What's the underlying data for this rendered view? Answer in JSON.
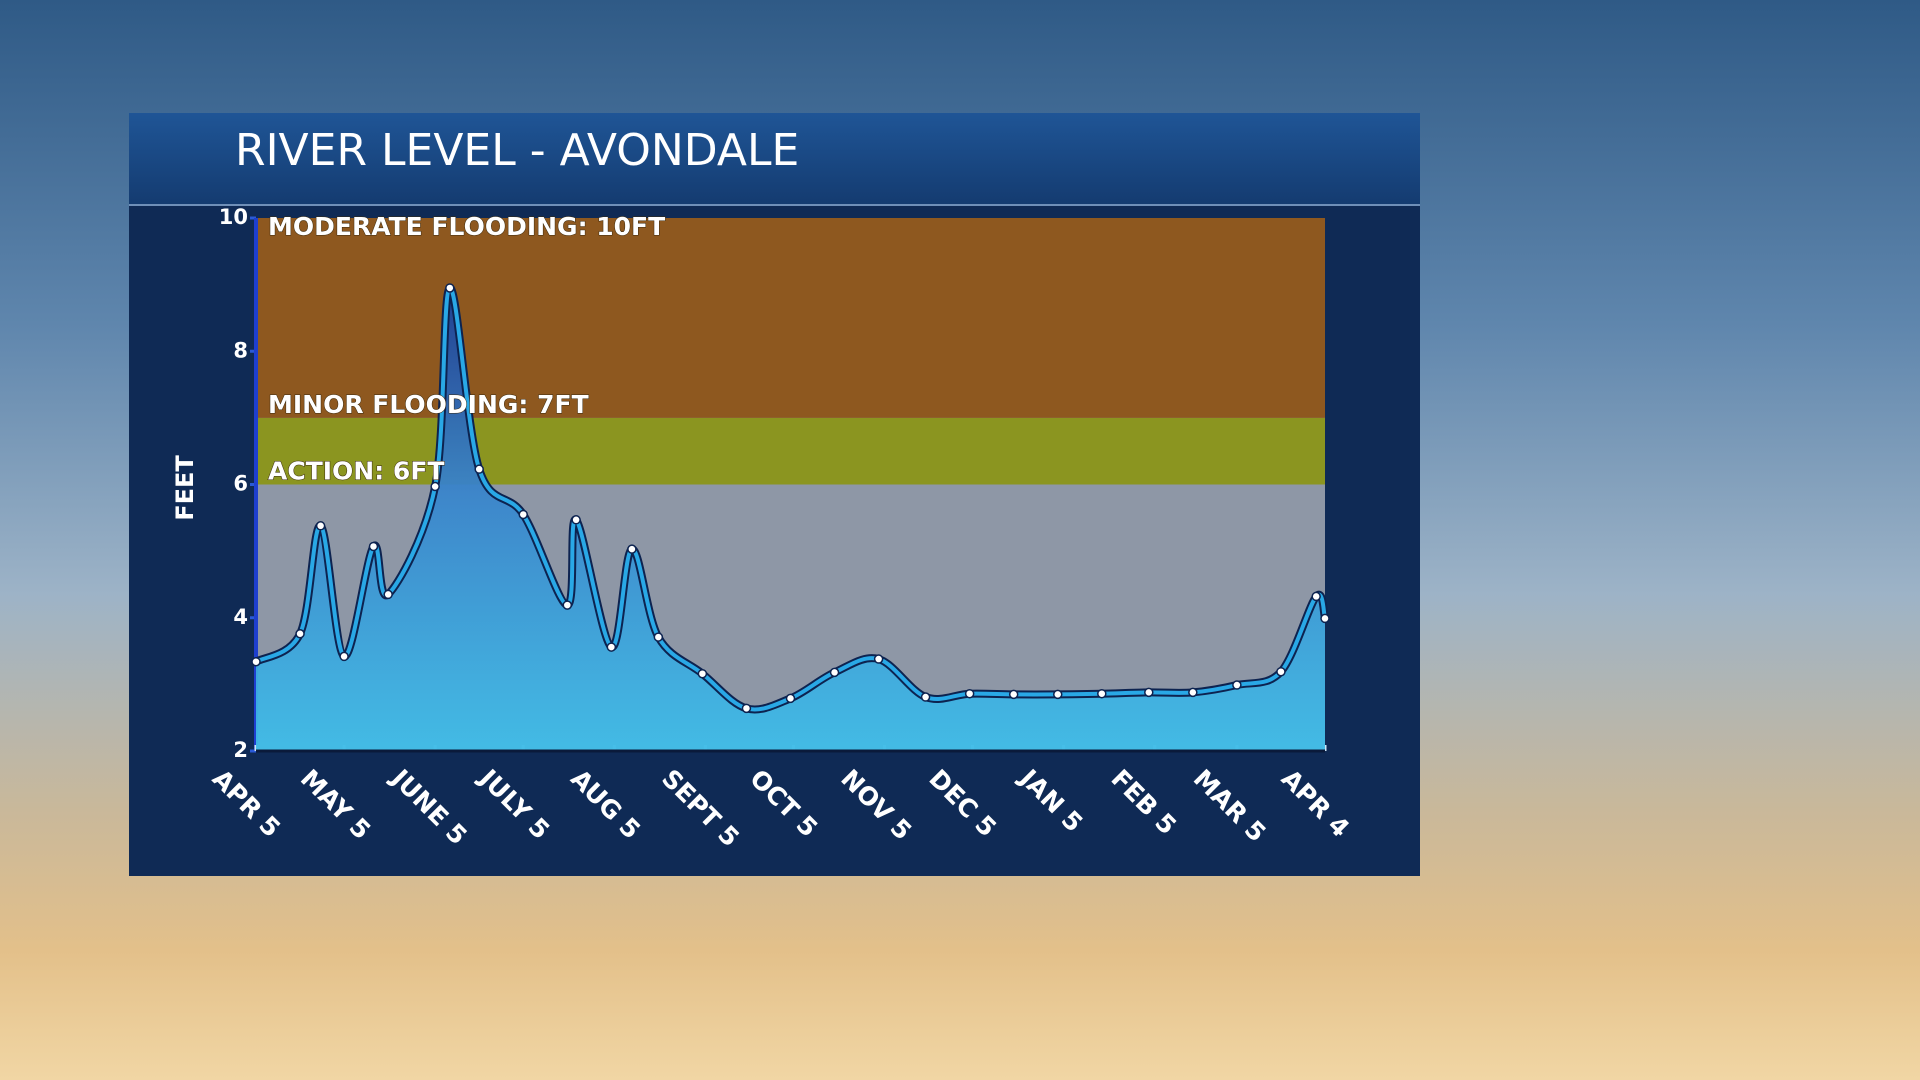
{
  "chart_data": {
    "type": "area",
    "title": "RIVER LEVEL - AVONDALE",
    "y_label": "FEET",
    "x": [
      0,
      15,
      22,
      30,
      40,
      45,
      61,
      66,
      76,
      91,
      106,
      109,
      121,
      128,
      137,
      152,
      167,
      182,
      197,
      212,
      228,
      243,
      258,
      273,
      288,
      304,
      319,
      334,
      349,
      361,
      364
    ],
    "series": [
      {
        "name": "River level",
        "color": "#29a8e6",
        "values": [
          3.34,
          3.76,
          5.38,
          3.42,
          5.07,
          4.35,
          5.97,
          8.95,
          6.23,
          5.55,
          4.19,
          5.47,
          3.56,
          5.03,
          3.71,
          3.16,
          2.64,
          2.79,
          3.18,
          3.38,
          2.81,
          2.86,
          2.85,
          2.85,
          2.86,
          2.88,
          2.88,
          2.99,
          3.19,
          4.32,
          3.99
        ]
      }
    ],
    "xlim": [
      0,
      364
    ],
    "xticks": [
      {
        "value": 0,
        "label": "APR 5"
      },
      {
        "value": 30,
        "label": "MAY 5"
      },
      {
        "value": 61,
        "label": "JUNE 5"
      },
      {
        "value": 91,
        "label": "JULY 5"
      },
      {
        "value": 122,
        "label": "AUG 5"
      },
      {
        "value": 153,
        "label": "SEPT 5"
      },
      {
        "value": 183,
        "label": "OCT 5"
      },
      {
        "value": 214,
        "label": "NOV 5"
      },
      {
        "value": 244,
        "label": "DEC 5"
      },
      {
        "value": 275,
        "label": "JAN 5"
      },
      {
        "value": 306,
        "label": "FEB 5"
      },
      {
        "value": 334,
        "label": "MAR 5"
      },
      {
        "value": 364,
        "label": "APR 4"
      }
    ],
    "ylim": [
      2,
      10
    ],
    "yticks": [
      2,
      4,
      6,
      8,
      10
    ],
    "background": "#8e97a6",
    "bands": [
      {
        "label": "ACTION: 6FT",
        "value": 6,
        "color": "#8b9520"
      },
      {
        "label": "MINOR FLOODING: 7FT",
        "value": 7,
        "color": "#8e581f"
      },
      {
        "label": "MODERATE FLOODING: 10FT",
        "value": 10
      }
    ]
  }
}
